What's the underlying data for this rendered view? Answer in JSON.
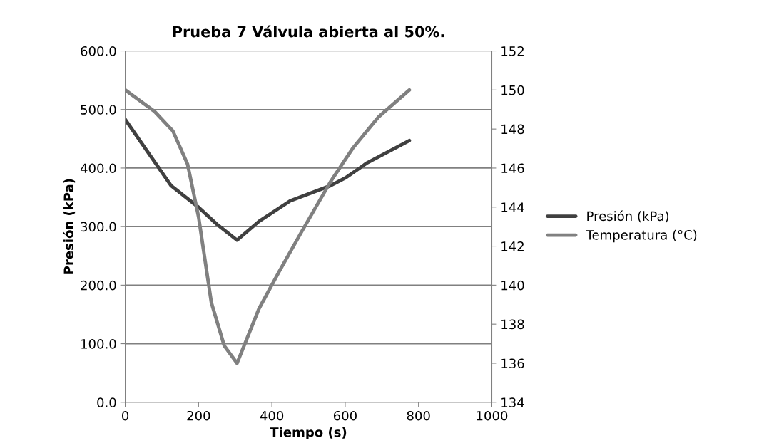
{
  "chart_data": {
    "type": "line",
    "title": "Prueba 7 Válvula abierta al 50%.",
    "xlabel": "Tiempo (s)",
    "ylabel": "Presión (kPa)",
    "series": [
      {
        "name": "Presión (kPa)",
        "color": "#404040",
        "x": [
          0,
          125,
          200,
          250,
          305,
          365,
          450,
          560,
          600,
          660,
          775
        ],
        "values": [
          483,
          370,
          333,
          304,
          277,
          309,
          344,
          370,
          383,
          409,
          447
        ]
      },
      {
        "name": "Temperatura (°C)",
        "color": "#808080",
        "axis": "y2",
        "x": [
          0,
          80,
          130,
          170,
          200,
          235,
          270,
          305,
          365,
          420,
          480,
          560,
          620,
          690,
          775
        ],
        "values": [
          150.0,
          148.9,
          147.9,
          146.2,
          143.5,
          139.1,
          136.9,
          136.0,
          138.8,
          140.7,
          142.7,
          145.3,
          147.0,
          148.6,
          150.0
        ]
      }
    ],
    "xlim": [
      0,
      1000
    ],
    "xticks": [
      0,
      200,
      400,
      600,
      800,
      1000
    ],
    "ylim": [
      0,
      600
    ],
    "yticks": [
      {
        "value": 0,
        "label": "0.0"
      },
      {
        "value": 100,
        "label": "100.0"
      },
      {
        "value": 200,
        "label": "200.0"
      },
      {
        "value": 300,
        "label": "300.0"
      },
      {
        "value": 400,
        "label": "400.0"
      },
      {
        "value": 500,
        "label": "500.0"
      },
      {
        "value": 600,
        "label": "600.0"
      }
    ],
    "y2lim": [
      134,
      152
    ],
    "y2ticks": [
      134,
      136,
      138,
      140,
      142,
      144,
      146,
      148,
      150,
      152
    ],
    "grid": "y",
    "legend": "right",
    "marker": "none",
    "line_style": "solid"
  }
}
